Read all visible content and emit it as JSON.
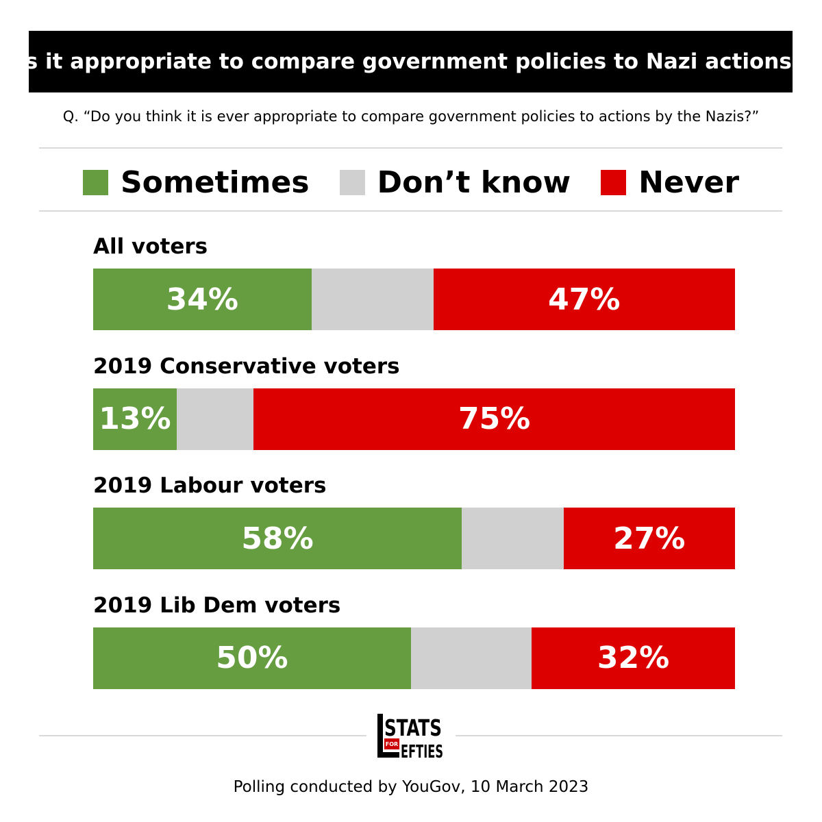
{
  "header": {
    "title": "Is it appropriate to compare government policies to Nazi actions?",
    "question": "Q. “Do you think it is ever appropriate to compare government policies to actions by the Nazis?”"
  },
  "colors": {
    "sometimes": "#669d40",
    "dont_know": "#d0d0d0",
    "never": "#dd0000"
  },
  "chart_data": {
    "type": "bar",
    "orientation": "horizontal",
    "stacked": true,
    "legend_position": "top",
    "categories": [
      "All voters",
      "2019 Conservative voters",
      "2019 Labour voters",
      "2019 Lib Dem voters"
    ],
    "series": [
      {
        "name": "Sometimes",
        "values": [
          34,
          13,
          58,
          50
        ],
        "labels": [
          "34%",
          "13%",
          "58%",
          "50%"
        ]
      },
      {
        "name": "Don’t know",
        "values": [
          19,
          12,
          16,
          19
        ],
        "labels": [
          "",
          "",
          "",
          ""
        ]
      },
      {
        "name": "Never",
        "values": [
          47,
          75,
          27,
          32
        ],
        "labels": [
          "47%",
          "75%",
          "27%",
          "32%"
        ]
      }
    ]
  },
  "logo": {
    "line1": "STATS",
    "line2": "FOR",
    "line3": "EFTIES"
  },
  "footer": {
    "source": "Polling conducted by YouGov, 10 March 2023"
  }
}
